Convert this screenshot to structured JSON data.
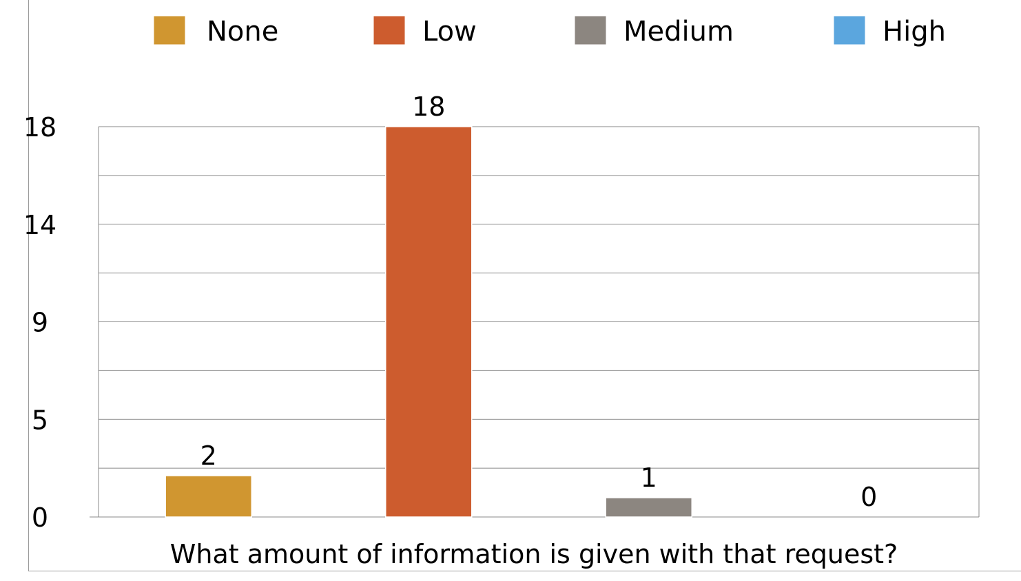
{
  "chart_data": {
    "type": "bar",
    "categories": [
      "None",
      "Low",
      "Medium",
      "High"
    ],
    "values": [
      2,
      18,
      1,
      0
    ],
    "data_labels": [
      "2",
      "18",
      "1",
      "0"
    ],
    "colors": [
      "#D09630",
      "#CD5C2E",
      "#8C8680",
      "#5BA6DE"
    ],
    "xlabel": "What amount of information is given with that request?",
    "ylim": [
      0,
      18
    ],
    "y_ticks": [
      0,
      5,
      9,
      14,
      18
    ],
    "y_tick_labels": [
      "0",
      "5",
      "9",
      "14",
      "18"
    ],
    "grid": true,
    "legend": {
      "position": "top",
      "entries": [
        "None",
        "Low",
        "Medium",
        "High"
      ]
    }
  }
}
